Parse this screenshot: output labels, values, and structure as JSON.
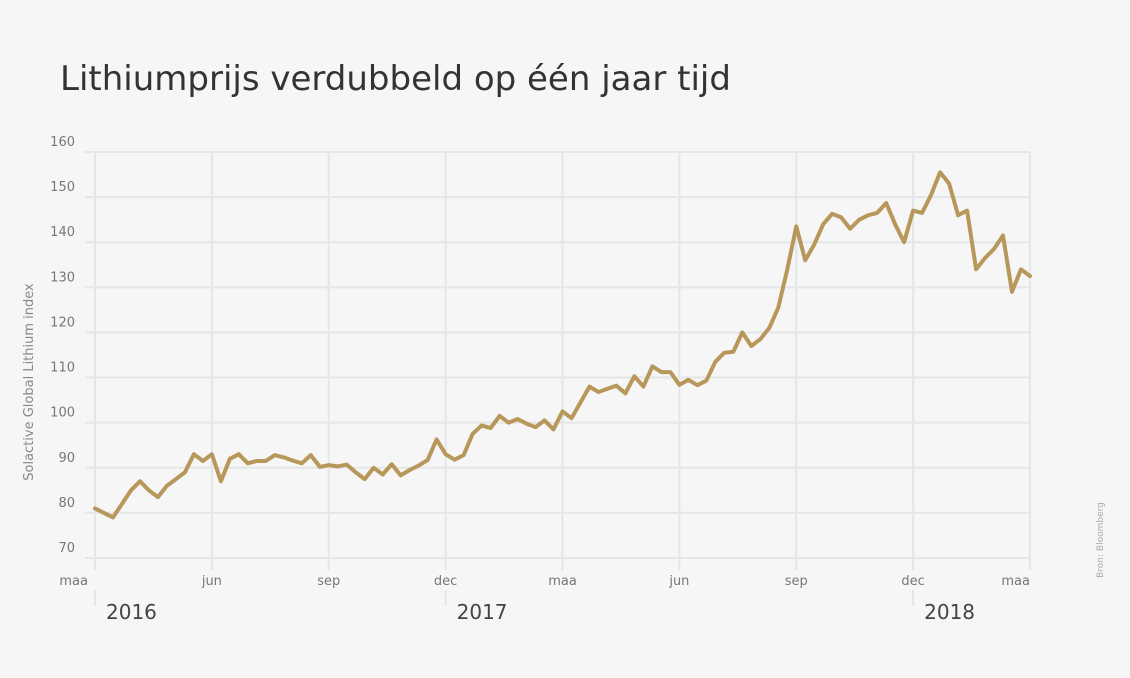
{
  "chart_data": {
    "type": "line",
    "title": "Lithiumprijs verdubbeld op één jaar tijd",
    "ylabel": "Solactive Global Lithium index",
    "source": "Bron: Bloomberg",
    "categories": [
      "maa",
      null,
      null,
      null,
      null,
      null,
      null,
      null,
      null,
      null,
      null,
      null,
      null,
      "jun",
      null,
      null,
      null,
      null,
      null,
      null,
      null,
      null,
      null,
      null,
      null,
      null,
      "sep",
      null,
      null,
      null,
      null,
      null,
      null,
      null,
      null,
      null,
      null,
      null,
      null,
      "dec",
      null,
      null,
      null,
      null,
      null,
      null,
      null,
      null,
      null,
      null,
      null,
      null,
      "maa",
      null,
      null,
      null,
      null,
      null,
      null,
      null,
      null,
      null,
      null,
      null,
      null,
      "jun",
      null,
      null,
      null,
      null,
      null,
      null,
      null,
      null,
      null,
      null,
      null,
      null,
      "sep",
      null,
      null,
      null,
      null,
      null,
      null,
      null,
      null,
      null,
      null,
      null,
      null,
      "dec",
      null,
      null,
      null,
      null,
      null,
      null,
      null,
      null,
      null,
      null,
      null,
      null,
      "maa"
    ],
    "years": [
      "2016",
      null,
      null,
      null,
      null,
      null,
      null,
      null,
      null,
      null,
      null,
      null,
      null,
      null,
      null,
      null,
      null,
      null,
      null,
      null,
      null,
      null,
      null,
      null,
      null,
      null,
      null,
      null,
      null,
      null,
      null,
      null,
      null,
      null,
      null,
      null,
      null,
      null,
      null,
      "2017",
      null,
      null,
      null,
      null,
      null,
      null,
      null,
      null,
      null,
      null,
      null,
      null,
      null,
      null,
      null,
      null,
      null,
      null,
      null,
      null,
      null,
      null,
      null,
      null,
      null,
      null,
      null,
      null,
      null,
      null,
      null,
      null,
      null,
      null,
      null,
      null,
      null,
      null,
      null,
      null,
      null,
      null,
      null,
      null,
      null,
      null,
      null,
      null,
      null,
      null,
      null,
      "2018",
      null,
      null,
      null,
      null,
      null,
      null,
      null,
      null,
      null,
      null,
      null,
      null,
      null
    ],
    "values": [
      81,
      80,
      79,
      82,
      85,
      87,
      85,
      83.5,
      86,
      87.5,
      89,
      93,
      91.5,
      93,
      87,
      92,
      93,
      91,
      91.5,
      91.5,
      92.8,
      92.3,
      91.6,
      91,
      92.8,
      90.2,
      90.6,
      90.3,
      90.7,
      89,
      87.5,
      90,
      88.5,
      90.8,
      88.3,
      89.5,
      90.5,
      91.7,
      96.3,
      93,
      91.8,
      92.8,
      97.5,
      99.4,
      98.8,
      101.5,
      100,
      100.8,
      99.8,
      99,
      100.5,
      98.5,
      102.5,
      101,
      104.5,
      108,
      106.8,
      107.5,
      108.2,
      106.5,
      110.3,
      108,
      112.5,
      111.2,
      111.2,
      108.4,
      109.5,
      108.3,
      109.3,
      113.5,
      115.5,
      115.7,
      120,
      117,
      118.5,
      121,
      125.5,
      134,
      143.5,
      136,
      139.5,
      144,
      146.3,
      145.5,
      143,
      145,
      146,
      146.5,
      148.7,
      144,
      140,
      147,
      146.5,
      150.5,
      155.5,
      153,
      146,
      147,
      134,
      136.5,
      138.5,
      141.5,
      129,
      134,
      132.5
    ],
    "color": "#b8975a",
    "ylim": [
      70,
      160
    ],
    "yticks": [
      70,
      80,
      90,
      100,
      110,
      120,
      130,
      140,
      150,
      160
    ],
    "grid": true
  }
}
